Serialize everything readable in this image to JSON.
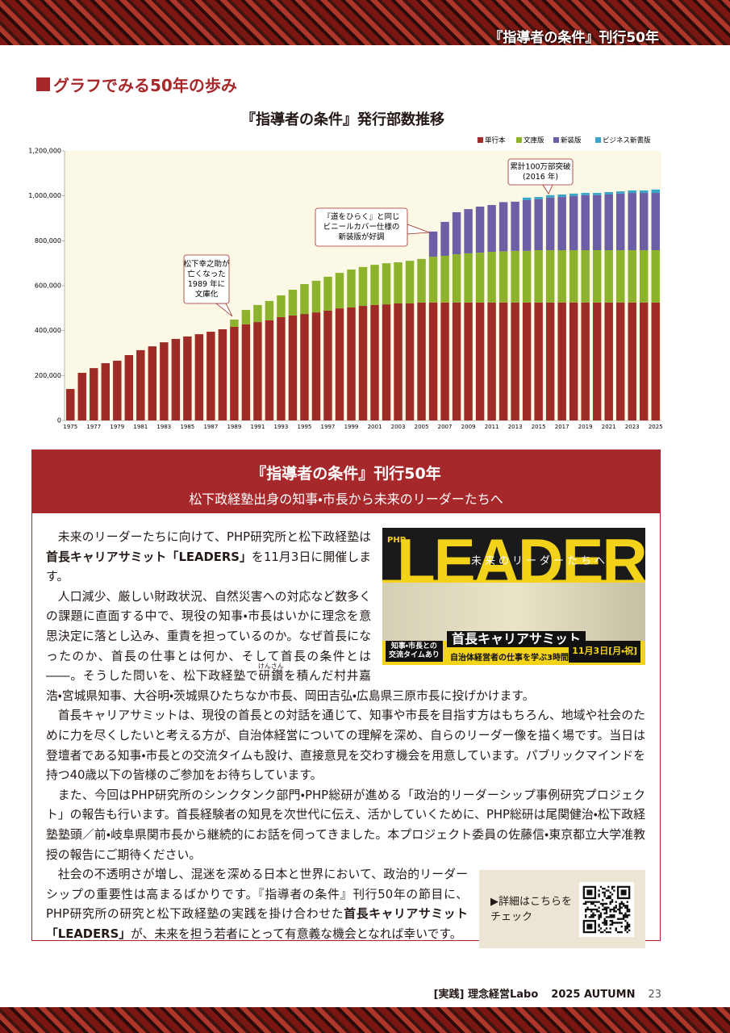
{
  "header": {
    "tag": "『指導者の条件』刊行50年"
  },
  "section_heading": "グラフでみる50年の歩み",
  "chart_data": {
    "type": "stacked_bar",
    "title": "『指導者の条件』発行部数推移",
    "categories": [
      "1975",
      null,
      "1977",
      null,
      "1979",
      null,
      "1981",
      null,
      "1983",
      null,
      "1985",
      null,
      "1987",
      null,
      "1989",
      null,
      "1991",
      null,
      "1993",
      null,
      "1995",
      null,
      "1997",
      null,
      "1999",
      null,
      "2001",
      null,
      "2003",
      null,
      "2005",
      null,
      "2007",
      null,
      "2009",
      null,
      "2011",
      null,
      "2013",
      null,
      "2015",
      null,
      "2017",
      null,
      "2019",
      null,
      "2021",
      null,
      "2023",
      null,
      "2025"
    ],
    "series": [
      {
        "name": "単行本",
        "color": "#9e2b25",
        "values": [
          140000,
          212000,
          233000,
          255000,
          266000,
          291000,
          313000,
          330000,
          348000,
          363000,
          374000,
          384000,
          395000,
          406000,
          417000,
          428000,
          438000,
          446000,
          460000,
          467000,
          474000,
          481000,
          489000,
          499000,
          503000,
          510000,
          514000,
          517000,
          521000,
          521000,
          525000,
          525000,
          525000,
          525000,
          525000,
          525000,
          525000,
          525000,
          525000,
          525000,
          525000,
          525000,
          525000,
          525000,
          525000,
          525000,
          525000,
          525000,
          525000,
          525000,
          525000
        ]
      },
      {
        "name": "文庫版",
        "color": "#8db32c",
        "values": [
          null,
          null,
          null,
          null,
          null,
          null,
          null,
          null,
          null,
          null,
          null,
          null,
          null,
          null,
          32000,
          64000,
          76000,
          86000,
          97000,
          115000,
          133000,
          141000,
          151000,
          158000,
          169000,
          173000,
          179000,
          183000,
          183000,
          190000,
          194000,
          204000,
          208000,
          215000,
          219000,
          222000,
          226000,
          228000,
          230000,
          230000,
          233000,
          233000,
          233000,
          233000,
          233000,
          233000,
          233000,
          233000,
          233000,
          233000,
          233000
        ]
      },
      {
        "name": "新装版",
        "color": "#6c5fa6",
        "values": [
          null,
          null,
          null,
          null,
          null,
          null,
          null,
          null,
          null,
          null,
          null,
          null,
          null,
          null,
          null,
          null,
          null,
          null,
          null,
          null,
          null,
          null,
          null,
          null,
          null,
          null,
          null,
          null,
          null,
          null,
          null,
          112000,
          151000,
          187000,
          197000,
          205000,
          208000,
          219000,
          219000,
          226000,
          227000,
          234000,
          237000,
          241000,
          245000,
          245000,
          248000,
          252000,
          255000,
          255000,
          255000
        ]
      },
      {
        "name": "ビジネス新書版",
        "color": "#3aa5c6",
        "values": [
          null,
          null,
          null,
          null,
          null,
          null,
          null,
          null,
          null,
          null,
          null,
          null,
          null,
          null,
          null,
          null,
          null,
          null,
          null,
          null,
          null,
          null,
          null,
          null,
          null,
          null,
          null,
          null,
          null,
          null,
          null,
          null,
          null,
          null,
          null,
          null,
          null,
          null,
          null,
          11000,
          10000,
          11000,
          11000,
          11000,
          10000,
          10000,
          11000,
          10000,
          11000,
          11000,
          15000
        ]
      }
    ],
    "ylim": [
      0,
      1200000
    ],
    "yticks": [
      0,
      {
        "value": 200000,
        "label": "200,000"
      },
      {
        "value": 400000,
        "label": "400,000"
      },
      {
        "value": 600000,
        "label": "600,000"
      },
      {
        "value": 800000,
        "label": "800,000"
      },
      {
        "value": 1000000,
        "label": "1,000,000"
      },
      {
        "value": 1200000,
        "label": "1,200,000"
      }
    ],
    "grid": false,
    "legend": "top-right",
    "annotations": [
      {
        "text": [
          "松下幸之助が",
          "亡くなった",
          "1989 年に",
          "文庫化"
        ]
      },
      {
        "text": [
          "『道をひらく』と同じ",
          "ビニールカバー仕様の",
          "新装版が好調"
        ]
      },
      {
        "text": [
          "累計100万部突破",
          "(2016 年)"
        ]
      }
    ]
  },
  "article": {
    "title": "『指導者の条件』刊行50年",
    "subtitle": "松下政経塾出身の知事・市長から未来のリーダーたちへ",
    "poster": {
      "brand": "PHP",
      "title": "LEADERS",
      "tagline": "未来のリーダーたちへ",
      "badge": [
        "知事・市長との",
        "交流タイムあり"
      ],
      "event": "首長キャリアサミット",
      "subtitle": "自治体経営者の仕事を学ぶ3時間",
      "date": "11月3日[月・祝]"
    },
    "paragraphs": [
      [
        {
          "text": "未来のリーダーたちに向けて、PHP研究所と松下政経塾は"
        },
        {
          "text": "首長キャリアサミット「LEADERS」",
          "bold": true
        },
        {
          "text": "を11月3日に開催します。"
        }
      ],
      [
        {
          "text": "人口減少、厳しい財政状況、自然災害への対応など数多くの課題に直面する中で、現役の知事・市長はいかに理念を意思決定に落とし込み、重責を担っているのか。なぜ首長になったのか、首長の仕事とは何か、そして首長の条件とは――。そうした問いを、松下政経塾で"
        },
        {
          "text": "研鑽",
          "ruby": "けんさん"
        },
        {
          "text": "を積んだ村井嘉浩・宮城県知事、大谷明・茨城県ひたちなか市長、岡田吉弘・広島県三原市長に投げかけます。"
        }
      ],
      [
        {
          "text": "首長キャリアサミットは、現役の首長との対話を通じて、知事や市長を目指す方はもちろん、地域や社会のために力を尽くしたいと考える方が、自治体経営についての理解を深め、自らのリーダー像を描く場です。当日は登壇者である知事・市長との交流タイムも設け、直接意見を交わす機会を用意しています。パブリックマインドを持つ40歳以下の皆様のご参加をお待ちしています。"
        }
      ],
      [
        {
          "text": "また、今回はPHP研究所のシンクタンク部門・PHP総研が進める「政治的リーダーシップ事例研究プロジェクト」の報告も行います。首長経験者の知見を次世代に伝え、活かしていくために、PHP総研は尾関健治・松下政経塾塾頭／前・岐阜県関市長から継続的にお話を伺ってきました。本プロジェクト委員の佐藤信・東京都立大学准教授の報告にご期待ください。"
        }
      ],
      [
        {
          "text": "社会の不透明さが増し、混迷を深める日本と世界において、政治的リーダーシップの重要性は高まるばかりです。『指導者の条件』刊行50年の節目に、PHP研究所の研究と松下政経塾の実践を掛け合わせた"
        },
        {
          "text": "首長キャリアサミット「LEADERS」",
          "bold": true
        },
        {
          "text": "が、未来を担う若者にとって有意義な機会となれば幸いです。"
        }
      ]
    ],
    "cta": [
      "▶詳細はこちらを",
      "チェック"
    ]
  },
  "footer": {
    "magazine": "[実践] 理念経営Labo",
    "issue": "2025 AUTUMN",
    "page": "23"
  }
}
